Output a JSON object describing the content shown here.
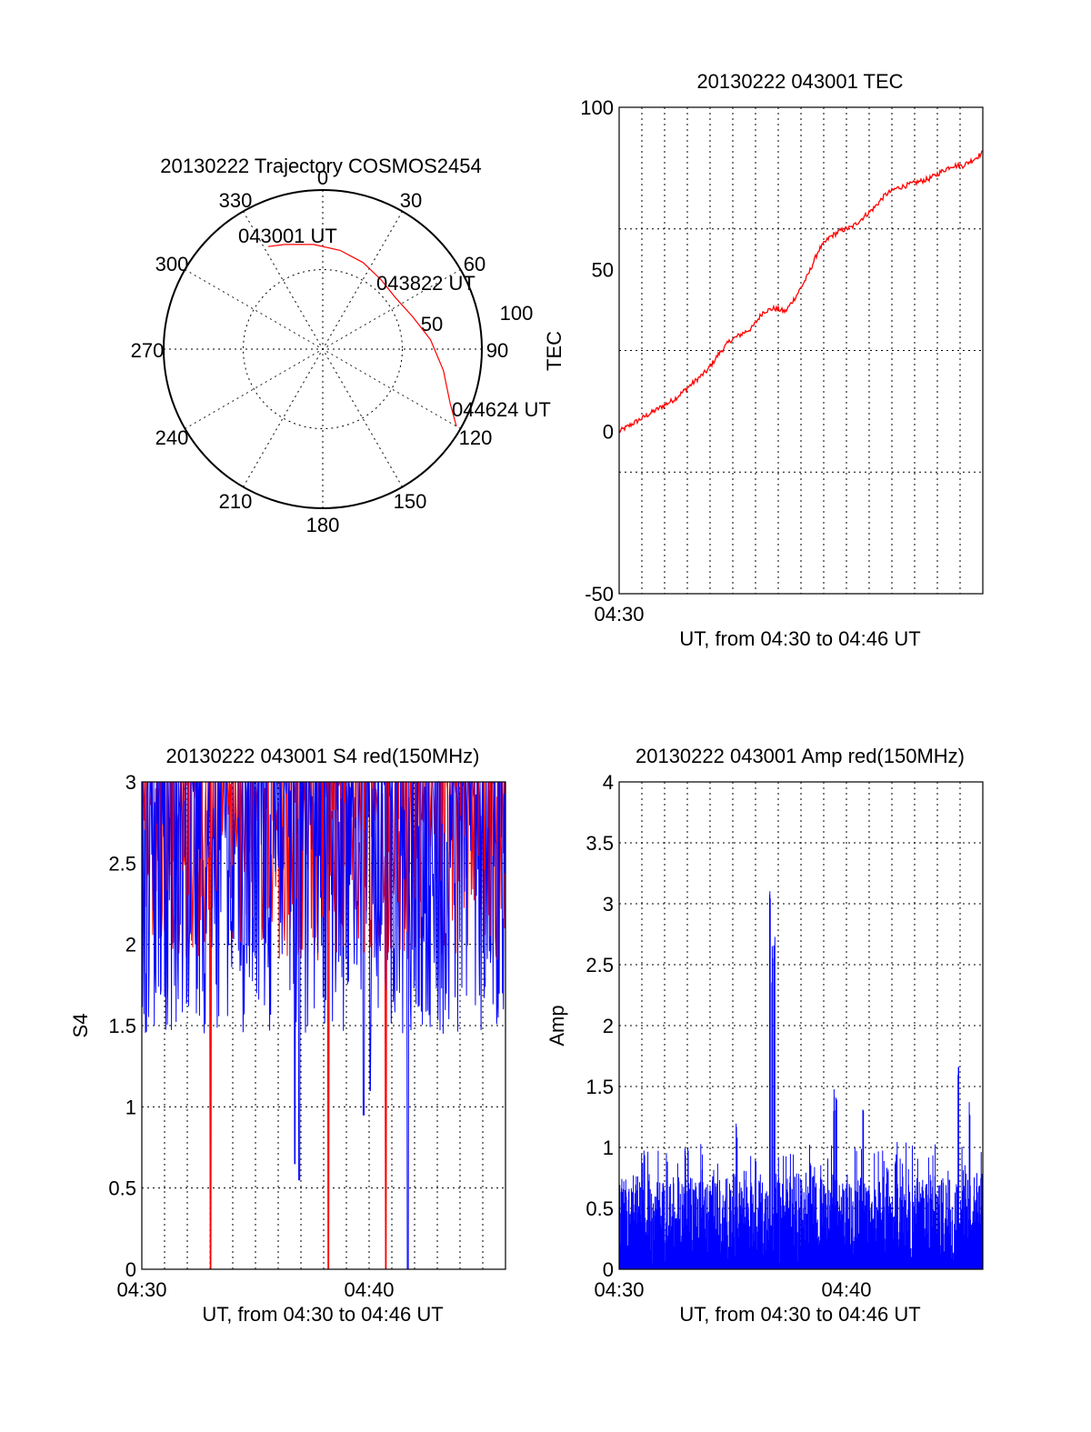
{
  "colors": {
    "red": "#ff0000",
    "blue": "#0000ff",
    "axis": "#000000"
  },
  "chart_data": [
    {
      "type": "polar",
      "title": "20130222 Trajectory COSMOS2454",
      "angle_labels": [
        "0",
        "30",
        "60",
        "90",
        "120",
        "150",
        "180",
        "210",
        "240",
        "270",
        "300",
        "330"
      ],
      "radius_labels": [
        "50",
        "100"
      ],
      "series": [
        {
          "azimuth_deg": [
            332,
            340,
            355,
            10,
            25,
            40,
            55,
            70,
            85,
            100,
            113,
            120
          ],
          "zenith": [
            73,
            70,
            66,
            63,
            60,
            57,
            56,
            60,
            68,
            77,
            87,
            97
          ]
        }
      ],
      "annotations": [
        "043001 UT",
        "043822 UT",
        "044624 UT"
      ],
      "grid": true
    },
    {
      "type": "line",
      "title": "20130222 043001 TEC",
      "xlabel": "UT, from 04:30 to 04:46 UT",
      "ylabel": "TEC",
      "xlim": [
        0,
        16.4
      ],
      "ylim": [
        -50,
        100
      ],
      "yticks": [
        "100",
        "50",
        "0",
        "-50"
      ],
      "xticks": [
        "04:30"
      ],
      "series": [
        {
          "x": [
            0,
            0.5,
            1,
            1.5,
            2,
            2.5,
            3,
            3.5,
            4,
            4.5,
            5,
            5.5,
            6,
            6.5,
            7,
            7.5,
            8,
            8.5,
            9,
            9.5,
            10,
            10.5,
            11,
            11.5,
            12,
            12.5,
            13,
            13.5,
            14,
            14.5,
            15,
            15.5,
            16,
            16.4
          ],
          "y": [
            0,
            2,
            4,
            6,
            8,
            10,
            13,
            16,
            19,
            24,
            28,
            30,
            32,
            37,
            38,
            37,
            42,
            48,
            56,
            60,
            62,
            63,
            66,
            69,
            73,
            75,
            76,
            77,
            78,
            80,
            82,
            82,
            84,
            86
          ]
        }
      ],
      "grid": true
    },
    {
      "type": "bar",
      "title": "20130222 043001 S4 red(150MHz)",
      "xlabel": "UT, from 04:30 to 04:46 UT",
      "ylabel": "S4",
      "xlim": [
        0,
        16.4
      ],
      "ylim": [
        0,
        3
      ],
      "yticks": [
        "0",
        "0.5",
        "1",
        "1.5",
        "2",
        "2.5",
        "3"
      ],
      "xticks": [
        "04:30",
        "04:40"
      ],
      "series": [
        {
          "color": "blue",
          "values_pattern": "dense fluctuating series between about 1.4 and 3 (clipped at 3), occasional dips to 0.55 near 04:37 and 0.95 near 04:40",
          "x_dips": [
            6.9,
            7.1,
            10.0,
            10.3,
            12.0
          ],
          "y_dips": [
            0.65,
            0.55,
            0.95,
            1.1,
            0
          ]
        },
        {
          "color": "red",
          "x_dips": [
            3.1,
            8.4,
            11.0
          ],
          "y_dips": [
            0,
            0,
            0
          ]
        }
      ],
      "grid": true
    },
    {
      "type": "bar",
      "title": "20130222 043001 Amp red(150MHz)",
      "xlabel": "UT, from 04:30 to 04:46 UT",
      "ylabel": "Amp",
      "xlim": [
        0,
        16.4
      ],
      "ylim": [
        0,
        4
      ],
      "yticks": [
        "0",
        "0.5",
        "1",
        "1.5",
        "2",
        "2.5",
        "3",
        "3.5",
        "4"
      ],
      "xticks": [
        "04:30",
        "04:40"
      ],
      "series": [
        {
          "color": "blue",
          "baseline_level": 0.7,
          "peaks_x": [
            5.3,
            6.8,
            6.9,
            7.0,
            9.7,
            9.8,
            11.0,
            15.3,
            15.8
          ],
          "peaks_y": [
            1.2,
            3.38,
            2.7,
            3.0,
            1.5,
            1.55,
            1.45,
            1.8,
            1.4
          ]
        }
      ],
      "grid": true
    }
  ],
  "labels": {
    "polar_title": "20130222 Trajectory COSMOS2454",
    "polar_ann_start": "043001 UT",
    "polar_ann_mid": "043822 UT",
    "polar_ann_end": "044624 UT",
    "tec_title": "20130222 043001 TEC",
    "tec_ylabel": "TEC",
    "tec_xlabel": "UT, from 04:30 to 04:46 UT",
    "tec_xtick0": "04:30",
    "s4_title": "20130222 043001 S4 red(150MHz)",
    "s4_ylabel": "S4",
    "s4_xlabel": "UT, from 04:30 to 04:46 UT",
    "s4_xtick0": "04:30",
    "s4_xtick1": "04:40",
    "amp_title": "20130222 043001 Amp red(150MHz)",
    "amp_ylabel": "Amp",
    "amp_xlabel": "UT, from 04:30 to 04:46 UT",
    "amp_xtick0": "04:30",
    "amp_xtick1": "04:40"
  }
}
